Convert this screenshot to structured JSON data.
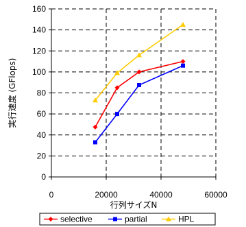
{
  "chart_data": {
    "type": "line",
    "title": "",
    "xlabel": "行列サイズN",
    "ylabel": "実行速度 (GFlops)",
    "xlim": [
      0,
      60000
    ],
    "ylim": [
      0,
      160
    ],
    "xticks": [
      0,
      20000,
      40000,
      60000
    ],
    "yticks": [
      0,
      20,
      40,
      60,
      80,
      100,
      120,
      140,
      160
    ],
    "grid": true,
    "grid_style": "dashed",
    "legend_position": "bottom",
    "series": [
      {
        "name": "selective",
        "color": "#ff0000",
        "marker": "diamond",
        "x": [
          16000,
          24000,
          32000,
          48000
        ],
        "values": [
          47.5,
          85,
          100,
          110
        ]
      },
      {
        "name": "partial",
        "color": "#0000ff",
        "marker": "square",
        "x": [
          16000,
          24000,
          32000,
          48000
        ],
        "values": [
          33,
          60,
          87.5,
          106
        ]
      },
      {
        "name": "HPL",
        "color": "#ffcc00",
        "marker": "triangle",
        "x": [
          16000,
          24000,
          32000,
          48000
        ],
        "values": [
          73,
          99,
          116,
          145
        ]
      }
    ]
  }
}
